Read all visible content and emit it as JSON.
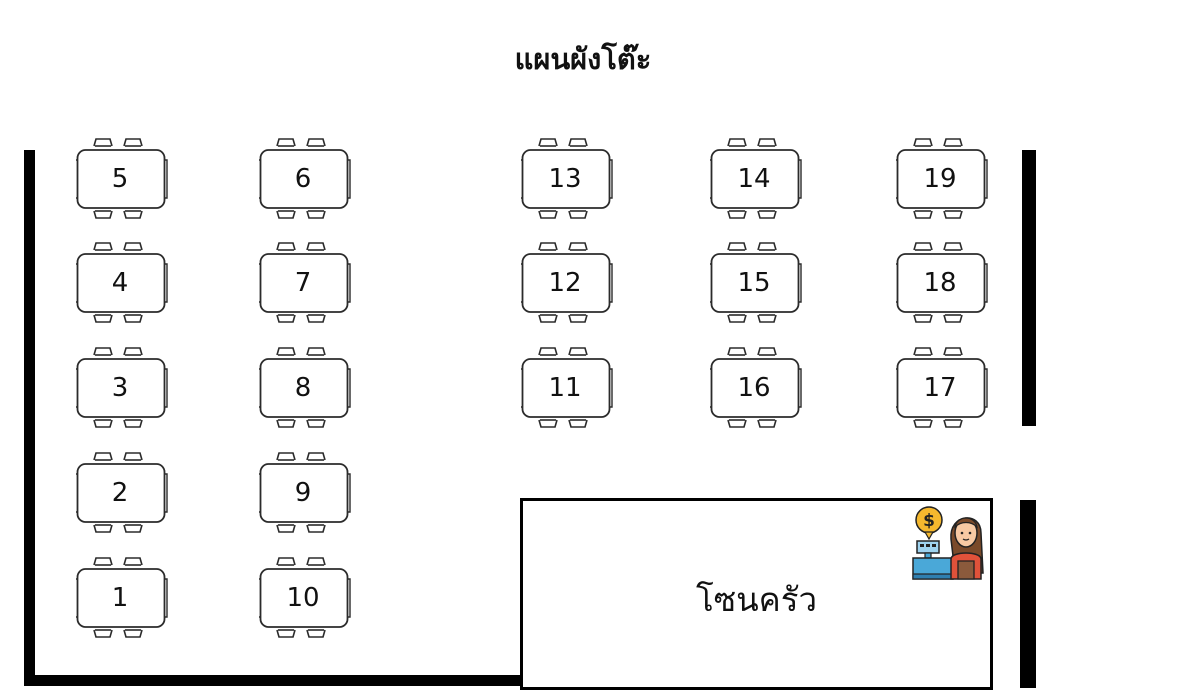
{
  "title": "แผนผังโต๊ะ",
  "kitchen": {
    "label": "โซนครัว",
    "icon": "cashier-icon"
  },
  "tables": [
    {
      "number": "5"
    },
    {
      "number": "6"
    },
    {
      "number": "13"
    },
    {
      "number": "14"
    },
    {
      "number": "19"
    },
    {
      "number": "4"
    },
    {
      "number": "7"
    },
    {
      "number": "12"
    },
    {
      "number": "15"
    },
    {
      "number": "18"
    },
    {
      "number": "3"
    },
    {
      "number": "8"
    },
    {
      "number": "11"
    },
    {
      "number": "16"
    },
    {
      "number": "17"
    },
    {
      "number": "2"
    },
    {
      "number": "9"
    },
    {
      "number": "1"
    },
    {
      "number": "10"
    }
  ],
  "colors": {
    "wall": "#000000",
    "table_outline": "#2b2b2b",
    "coin": "#f5b82e",
    "register": "#4aa8d8",
    "apron": "#8b5a3c",
    "shirt": "#e0523a",
    "hair": "#7a4a2a"
  }
}
